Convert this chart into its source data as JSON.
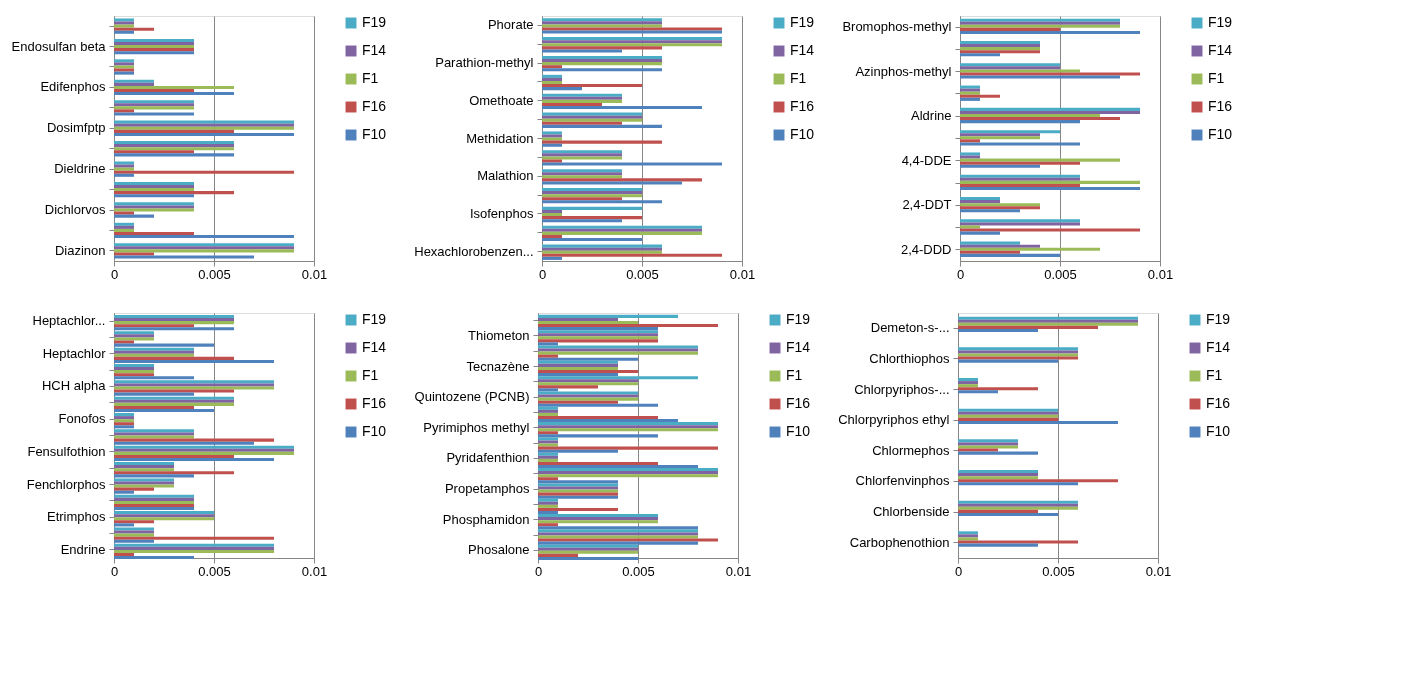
{
  "chart_data": [
    {
      "type": "bar",
      "orientation": "horizontal",
      "categories": [
        null,
        "Endosulfan beta",
        null,
        "Edifenphos",
        null,
        "Dosimfptp",
        null,
        "Dieldrine",
        null,
        "Dichlorvos",
        null,
        "Diazinon"
      ],
      "xlim": [
        0,
        0.01
      ],
      "xticks": [
        0,
        0.005,
        0.01
      ],
      "grid": "x",
      "legend": "right",
      "series": [
        {
          "name": "F19",
          "color": "#4bacc6",
          "values": [
            0.001,
            0.004,
            0.001,
            0.002,
            0.004,
            0.009,
            0.006,
            0.001,
            0.004,
            0.004,
            0.001,
            0.009
          ]
        },
        {
          "name": "F14",
          "color": "#8064a2",
          "values": [
            0.001,
            0.004,
            0.001,
            0.002,
            0.004,
            0.009,
            0.006,
            0.001,
            0.004,
            0.004,
            0.001,
            0.009
          ]
        },
        {
          "name": "F1",
          "color": "#9bbb59",
          "values": [
            0.001,
            0.004,
            0.001,
            0.006,
            0.004,
            0.009,
            0.006,
            0.001,
            0.004,
            0.004,
            0.001,
            0.009
          ]
        },
        {
          "name": "F16",
          "color": "#c0504d",
          "values": [
            0.002,
            0.004,
            0.001,
            0.004,
            0.001,
            0.006,
            0.004,
            0.009,
            0.006,
            0.001,
            0.004,
            0.002
          ]
        },
        {
          "name": "F10",
          "color": "#4f81bd",
          "values": [
            0.001,
            0.004,
            0.001,
            0.006,
            0.004,
            0.009,
            0.006,
            0.001,
            0.004,
            0.002,
            0.009,
            0.007
          ]
        }
      ]
    },
    {
      "type": "bar",
      "orientation": "horizontal",
      "categories": [
        "Phorate",
        null,
        "Parathion-methyl",
        null,
        "Omethoate",
        null,
        "Methidation",
        null,
        "Malathion",
        null,
        "Isofenphos",
        null,
        "Hexachlorobenzen..."
      ],
      "xlim": [
        0,
        0.01
      ],
      "xticks": [
        0,
        0.005,
        0.01
      ],
      "grid": "x",
      "legend": "right",
      "series": [
        {
          "name": "F19",
          "color": "#4bacc6",
          "values": [
            0.006,
            0.009,
            0.006,
            0.001,
            0.004,
            0.005,
            0.001,
            0.004,
            0.004,
            0.005,
            0.005,
            0.008,
            0.006
          ]
        },
        {
          "name": "F14",
          "color": "#8064a2",
          "values": [
            0.006,
            0.009,
            0.006,
            0.001,
            0.004,
            0.005,
            0.001,
            0.004,
            0.004,
            0.005,
            0.001,
            0.008,
            0.006
          ]
        },
        {
          "name": "F1",
          "color": "#9bbb59",
          "values": [
            0.006,
            0.009,
            0.006,
            0.001,
            0.004,
            0.005,
            0.001,
            0.004,
            0.004,
            0.005,
            0.001,
            0.008,
            0.006
          ]
        },
        {
          "name": "F16",
          "color": "#c0504d",
          "values": [
            0.009,
            0.006,
            0.001,
            0.005,
            0.003,
            0.004,
            0.006,
            0.001,
            0.008,
            0.004,
            0.005,
            0.001,
            0.009
          ]
        },
        {
          "name": "F10",
          "color": "#4f81bd",
          "values": [
            0.009,
            0.004,
            0.006,
            0.002,
            0.008,
            0.006,
            0.001,
            0.009,
            0.007,
            0.006,
            0.004,
            0.005,
            0.001
          ]
        }
      ]
    },
    {
      "type": "bar",
      "orientation": "horizontal",
      "categories": [
        "Bromophos-methyl",
        null,
        "Azinphos-methyl",
        null,
        "Aldrine",
        null,
        "4,4-DDE",
        null,
        "2,4-DDT",
        null,
        "2,4-DDD"
      ],
      "xlim": [
        0,
        0.01
      ],
      "xticks": [
        0,
        0.005,
        0.01
      ],
      "grid": "x",
      "legend": "right",
      "series": [
        {
          "name": "F19",
          "color": "#4bacc6",
          "values": [
            0.008,
            0.004,
            0.005,
            0.001,
            0.009,
            0.005,
            0.001,
            0.006,
            0.002,
            0.006,
            0.003
          ]
        },
        {
          "name": "F14",
          "color": "#8064a2",
          "values": [
            0.008,
            0.004,
            0.005,
            0.001,
            0.009,
            0.004,
            0.001,
            0.006,
            0.002,
            0.006,
            0.004
          ]
        },
        {
          "name": "F1",
          "color": "#9bbb59",
          "values": [
            0.008,
            0.004,
            0.006,
            0.001,
            0.007,
            0.004,
            0.008,
            0.009,
            0.004,
            0.001,
            0.007
          ]
        },
        {
          "name": "F16",
          "color": "#c0504d",
          "values": [
            0.005,
            0.004,
            0.009,
            0.002,
            0.008,
            0.001,
            0.006,
            0.006,
            0.004,
            0.009,
            0.003
          ]
        },
        {
          "name": "F10",
          "color": "#4f81bd",
          "values": [
            0.009,
            0.002,
            0.008,
            0.001,
            0.006,
            0.006,
            0.004,
            0.009,
            0.003,
            0.002,
            0.005
          ]
        }
      ]
    },
    {
      "type": "bar",
      "orientation": "horizontal",
      "categories": [
        "Heptachlor...",
        null,
        "Heptachlor",
        null,
        "HCH alpha",
        null,
        "Fonofos",
        null,
        "Fensulfothion",
        null,
        "Fenchlorphos",
        null,
        "Etrimphos",
        null,
        "Endrine"
      ],
      "xlim": [
        0,
        0.01
      ],
      "xticks": [
        0,
        0.005,
        0.01
      ],
      "grid": "x",
      "legend": "right",
      "series": [
        {
          "name": "F19",
          "color": "#4bacc6",
          "values": [
            0.006,
            0.002,
            0.004,
            0.002,
            0.008,
            0.006,
            0.001,
            0.004,
            0.009,
            0.003,
            0.003,
            0.004,
            0.005,
            0.002,
            0.008
          ]
        },
        {
          "name": "F14",
          "color": "#8064a2",
          "values": [
            0.006,
            0.002,
            0.004,
            0.002,
            0.008,
            0.006,
            0.001,
            0.004,
            0.009,
            0.003,
            0.003,
            0.004,
            0.005,
            0.002,
            0.008
          ]
        },
        {
          "name": "F1",
          "color": "#9bbb59",
          "values": [
            0.006,
            0.002,
            0.004,
            0.002,
            0.008,
            0.006,
            0.001,
            0.004,
            0.009,
            0.003,
            0.003,
            0.004,
            0.005,
            0.002,
            0.008
          ]
        },
        {
          "name": "F16",
          "color": "#c0504d",
          "values": [
            0.004,
            0.001,
            0.006,
            0.002,
            0.006,
            0.004,
            0.001,
            0.008,
            0.006,
            0.006,
            0.002,
            0.004,
            0.002,
            0.008,
            0.001
          ]
        },
        {
          "name": "F10",
          "color": "#4f81bd",
          "values": [
            0.006,
            0.005,
            0.008,
            0.004,
            0.004,
            0.005,
            0.001,
            0.007,
            0.008,
            0.004,
            0.001,
            0.004,
            0.001,
            0.002,
            0.004
          ]
        }
      ]
    },
    {
      "type": "bar",
      "orientation": "horizontal",
      "categories": [
        null,
        "Thiometon",
        null,
        "Tecnazène",
        null,
        "Quintozene (PCNB)",
        null,
        "Pyrimiphos methyl",
        null,
        "Pyridafenthion",
        null,
        "Propetamphos",
        null,
        "Phosphamidon",
        null,
        "Phosalone"
      ],
      "xlim": [
        0,
        0.01
      ],
      "xticks": [
        0,
        0.005,
        0.01
      ],
      "grid": "x",
      "legend": "right",
      "series": [
        {
          "name": "F19",
          "color": "#4bacc6",
          "values": [
            0.007,
            0.006,
            0.008,
            0.004,
            0.008,
            0.005,
            0.001,
            0.009,
            0.001,
            0.001,
            0.009,
            0.004,
            0.001,
            0.006,
            0.008,
            0.005
          ]
        },
        {
          "name": "F14",
          "color": "#8064a2",
          "values": [
            0.004,
            0.006,
            0.008,
            0.004,
            0.005,
            0.005,
            0.001,
            0.009,
            0.001,
            0.001,
            0.009,
            0.004,
            0.001,
            0.006,
            0.008,
            0.005
          ]
        },
        {
          "name": "F1",
          "color": "#9bbb59",
          "values": [
            0.005,
            0.006,
            0.008,
            0.004,
            0.005,
            0.005,
            0.001,
            0.009,
            0.001,
            0.001,
            0.009,
            0.004,
            0.001,
            0.006,
            0.008,
            0.005
          ]
        },
        {
          "name": "F16",
          "color": "#c0504d",
          "values": [
            0.009,
            0.006,
            0.001,
            0.005,
            0.003,
            0.004,
            0.006,
            0.001,
            0.009,
            0.006,
            0.001,
            0.004,
            0.004,
            0.001,
            0.009,
            0.002
          ]
        },
        {
          "name": "F10",
          "color": "#4f81bd",
          "values": [
            0.006,
            0.001,
            0.005,
            0.004,
            0.001,
            0.006,
            0.007,
            0.006,
            0.004,
            0.008,
            0.004,
            0.004,
            0.001,
            0.008,
            0.008,
            0.005
          ]
        }
      ]
    },
    {
      "type": "bar",
      "orientation": "horizontal",
      "categories": [
        "Demeton-s-...",
        "Chlorthiophos",
        "Chlorpyriphos-...",
        "Chlorpyriphos ethyl",
        "Chlormephos",
        "Chlorfenvinphos",
        "Chlorbenside",
        "Carbophenothion"
      ],
      "xlim": [
        0,
        0.01
      ],
      "xticks": [
        0,
        0.005,
        0.01
      ],
      "grid": "x",
      "legend": "right",
      "series": [
        {
          "name": "F19",
          "color": "#4bacc6",
          "values": [
            0.009,
            0.006,
            0.001,
            0.005,
            0.003,
            0.004,
            0.006,
            0.001
          ]
        },
        {
          "name": "F14",
          "color": "#8064a2",
          "values": [
            0.009,
            0.006,
            0.001,
            0.005,
            0.003,
            0.004,
            0.006,
            0.001
          ]
        },
        {
          "name": "F1",
          "color": "#9bbb59",
          "values": [
            0.009,
            0.006,
            0.001,
            0.005,
            0.003,
            0.004,
            0.006,
            0.001
          ]
        },
        {
          "name": "F16",
          "color": "#c0504d",
          "values": [
            0.007,
            0.006,
            0.004,
            0.005,
            0.002,
            0.008,
            0.004,
            0.006
          ]
        },
        {
          "name": "F10",
          "color": "#4f81bd",
          "values": [
            0.004,
            0.005,
            0.002,
            0.008,
            0.004,
            0.006,
            0.005,
            0.004
          ]
        }
      ]
    }
  ]
}
